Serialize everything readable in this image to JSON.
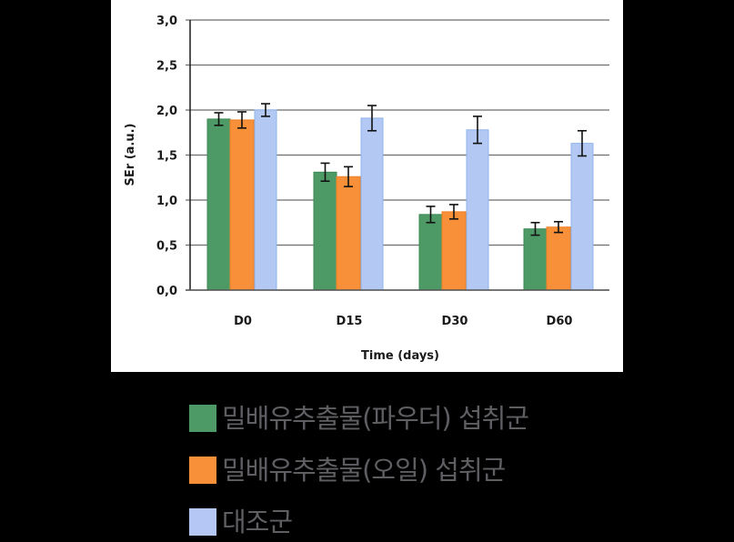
{
  "chart_data": {
    "type": "bar",
    "title": "",
    "xlabel": "Time (days)",
    "ylabel": "SEr (a.u.)",
    "ylim": [
      0,
      3.0
    ],
    "yticks": [
      "0,0",
      "0,5",
      "1,0",
      "1,5",
      "2,0",
      "2,5",
      "3,0"
    ],
    "grid": true,
    "legend_position": "bottom",
    "categories": [
      "D0",
      "D15",
      "D30",
      "D60"
    ],
    "series": [
      {
        "name": "밀배유추출물(파우더) 섭취군",
        "color": "#4e9a67",
        "values": [
          1.9,
          1.31,
          0.84,
          0.68
        ],
        "errors": [
          0.07,
          0.1,
          0.09,
          0.07
        ]
      },
      {
        "name": "밀배유추출물(오일) 섭취군",
        "color": "#f79038",
        "values": [
          1.89,
          1.26,
          0.87,
          0.7
        ],
        "errors": [
          0.09,
          0.11,
          0.08,
          0.06
        ]
      },
      {
        "name": "대조군",
        "color": "#b3c9f3",
        "values": [
          2.0,
          1.91,
          1.78,
          1.63
        ],
        "errors": [
          0.07,
          0.14,
          0.15,
          0.14
        ]
      }
    ]
  },
  "legend": {
    "items": [
      {
        "label": "밀배유추출물(파우더) 섭취군",
        "color": "#4e9a67"
      },
      {
        "label": "밀배유추출물(오일) 섭취군",
        "color": "#f79038"
      },
      {
        "label": "대조군",
        "color": "#b5c7f5"
      }
    ]
  }
}
